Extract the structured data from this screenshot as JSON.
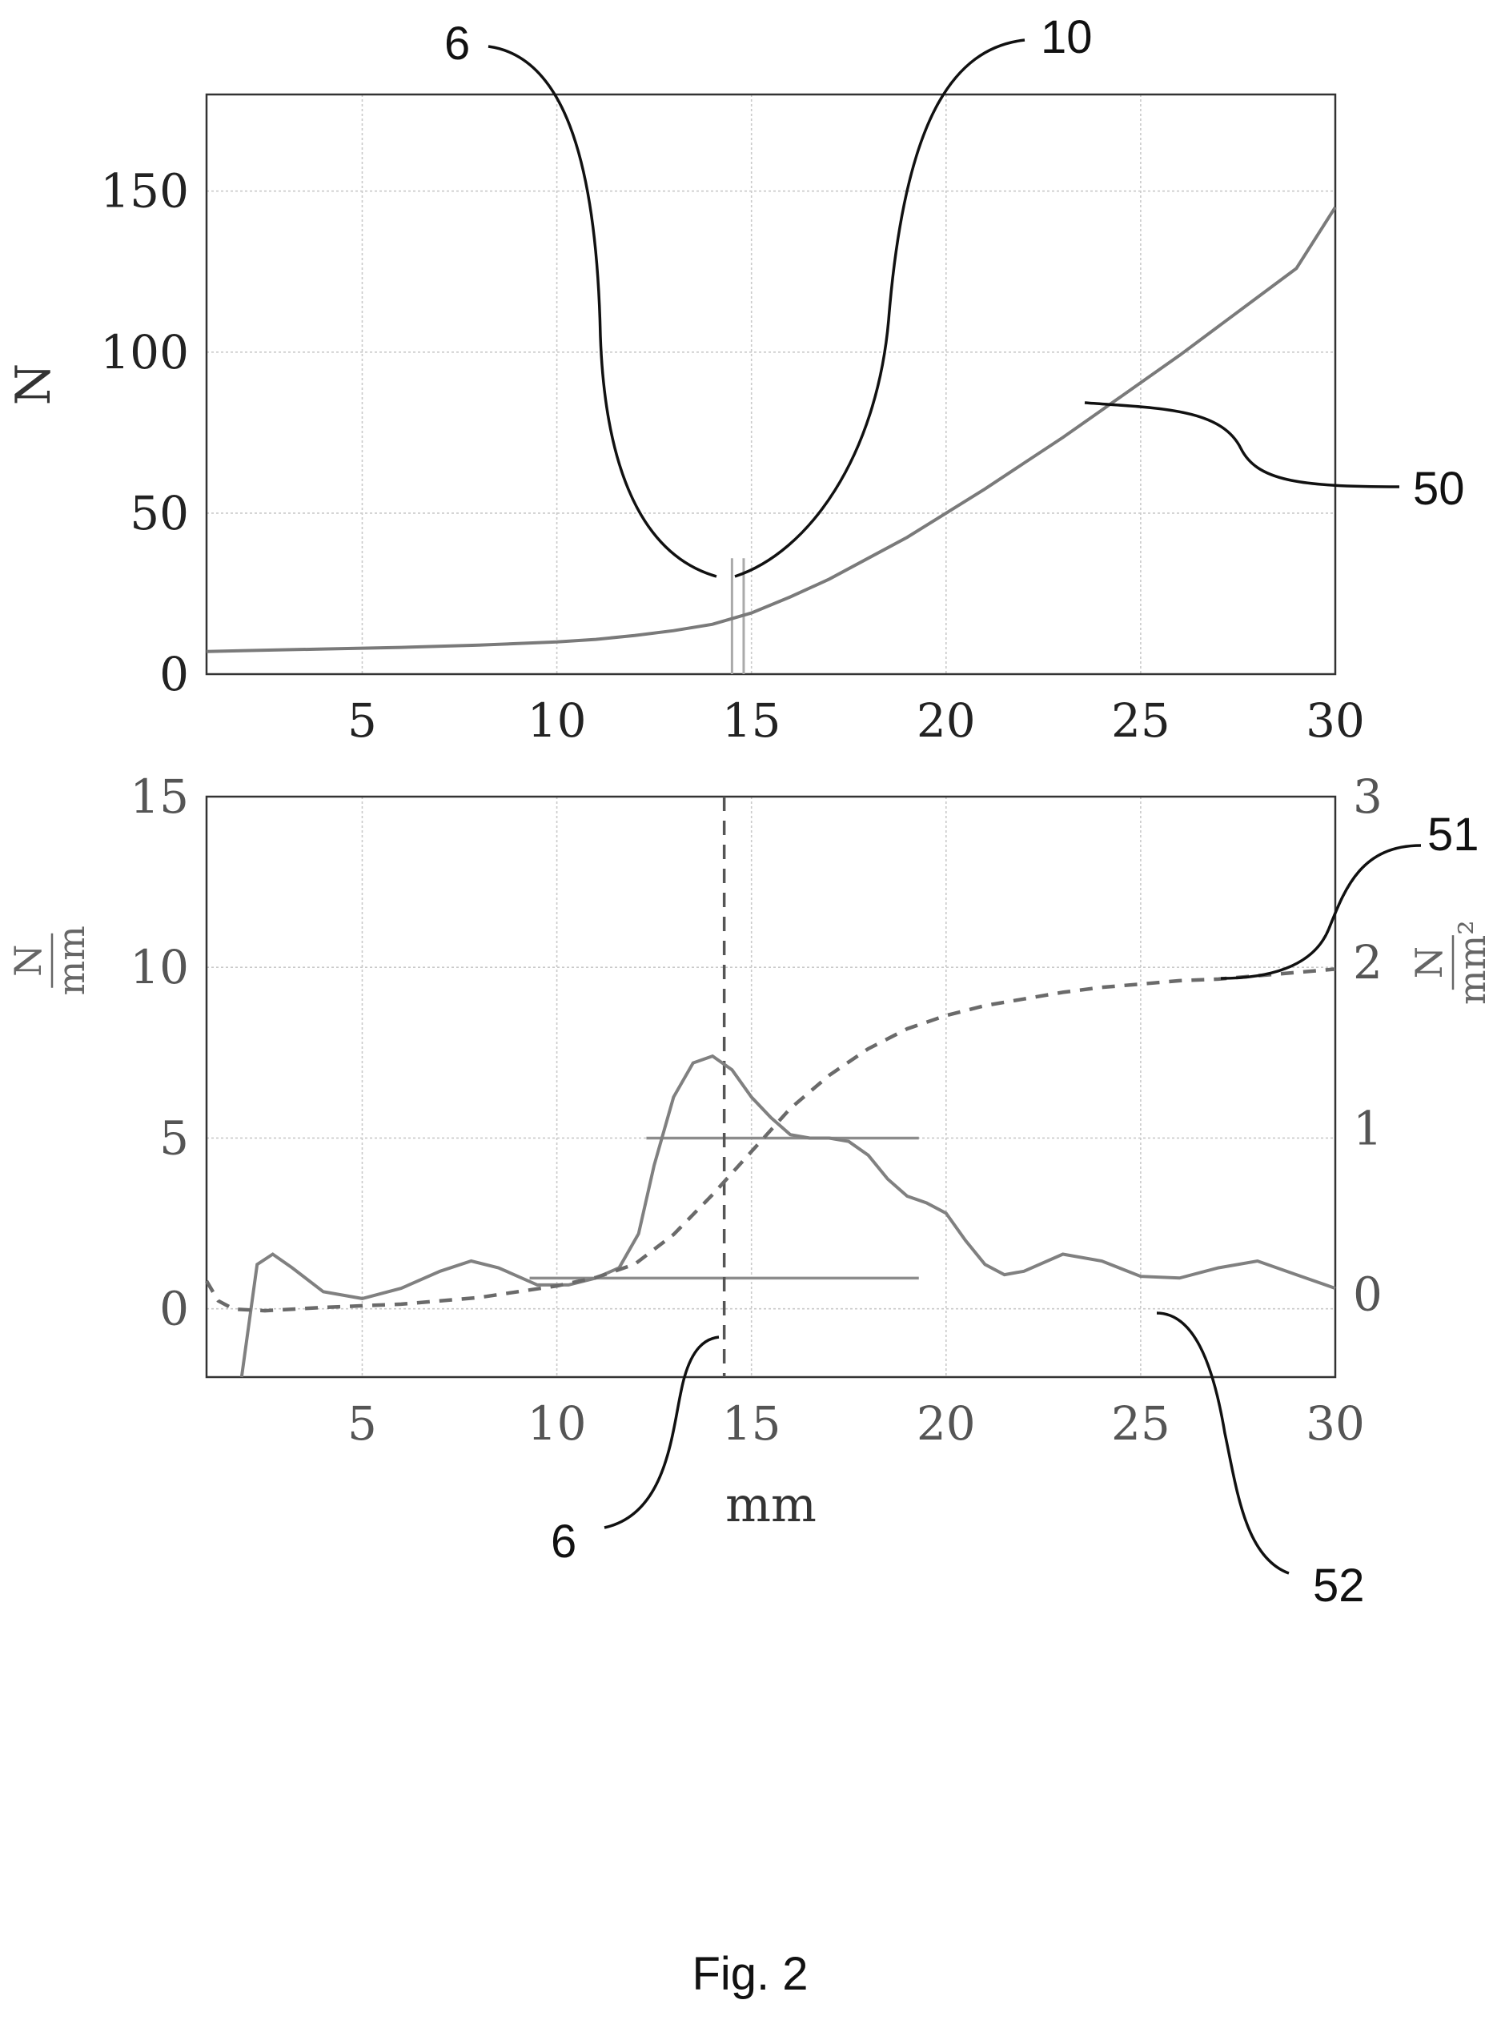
{
  "chart_data": [
    {
      "type": "line",
      "title": "",
      "xlabel": "",
      "ylabel": "N",
      "xlim": [
        1,
        30
      ],
      "ylim": [
        0,
        180
      ],
      "xticks": [
        "5",
        "10",
        "15",
        "20",
        "25",
        "30"
      ],
      "yticks": [
        "0",
        "50",
        "100",
        "150"
      ],
      "grid": true,
      "series": [
        {
          "x": [
            1,
            2,
            4,
            6,
            8,
            10,
            11,
            12,
            13,
            14,
            15,
            16,
            17,
            18,
            19,
            20,
            21,
            22,
            23,
            24,
            25,
            26,
            27,
            28,
            29,
            30
          ],
          "values": [
            7,
            7.3,
            7.8,
            8.3,
            9,
            10,
            10.8,
            12,
            13.5,
            15.5,
            19,
            24,
            29.5,
            36,
            42.5,
            50,
            57.5,
            65.5,
            73.5,
            82,
            90.5,
            99,
            108,
            117,
            126,
            145
          ]
        }
      ],
      "markers": [
        {
          "x": 14.5,
          "style": "vertical-line"
        },
        {
          "x": 14.8,
          "style": "vertical-line"
        }
      ],
      "annotations": [
        {
          "text": "6"
        },
        {
          "text": "10"
        },
        {
          "text": "50"
        }
      ]
    },
    {
      "type": "line",
      "title": "",
      "xlabel": "mm",
      "ylabel": "N/mm",
      "ylabel_num": "N",
      "ylabel_den": "mm",
      "y2label_num": "N",
      "y2label_den": "mm²",
      "xlim": [
        1,
        30
      ],
      "ylim": [
        -2,
        15
      ],
      "y2lim": [
        -0.5,
        3
      ],
      "xticks": [
        "5",
        "10",
        "15",
        "20",
        "25",
        "30"
      ],
      "yticks": [
        "0",
        "5",
        "10",
        "15"
      ],
      "y2ticks": [
        "0",
        "1",
        "2",
        "3"
      ],
      "grid": true,
      "series": [
        {
          "axis": "left",
          "style": "solid",
          "x": [
            1.9,
            2.3,
            2.7,
            3.2,
            4,
            5,
            6,
            7,
            7.8,
            8.5,
            9.5,
            10.3,
            11,
            11.6,
            12.1,
            12.5,
            13,
            13.5,
            14,
            14.5,
            15,
            15.5,
            16,
            16.5,
            17,
            17.5,
            18,
            18.5,
            19,
            19.5,
            20,
            20.5,
            21,
            21.5,
            22,
            23,
            24,
            25,
            26,
            27,
            28,
            29,
            30
          ],
          "values": [
            -2,
            1.3,
            1.6,
            1.2,
            0.5,
            0.3,
            0.6,
            1.1,
            1.4,
            1.2,
            0.7,
            0.7,
            0.9,
            1.2,
            2.2,
            4.2,
            6.2,
            7.2,
            7.4,
            7.0,
            6.2,
            5.6,
            5.1,
            5.0,
            5.0,
            4.9,
            4.5,
            3.8,
            3.3,
            3.1,
            2.8,
            2.0,
            1.3,
            1.0,
            1.1,
            1.6,
            1.4,
            0.95,
            0.9,
            1.2,
            1.4,
            1.0,
            0.6
          ]
        },
        {
          "axis": "right",
          "style": "dashed",
          "x": [
            1,
            1.3,
            1.7,
            2.5,
            4,
            6,
            8,
            10,
            11,
            12,
            13,
            14,
            15,
            16,
            17,
            18,
            19,
            20,
            21,
            22,
            23,
            24,
            25,
            26,
            27,
            28,
            29,
            30
          ],
          "values": [
            0.08,
            -0.04,
            -0.09,
            -0.1,
            -0.08,
            -0.06,
            -0.02,
            0.05,
            0.1,
            0.18,
            0.36,
            0.6,
            0.86,
            1.12,
            1.32,
            1.48,
            1.6,
            1.68,
            1.74,
            1.78,
            1.82,
            1.85,
            1.87,
            1.89,
            1.9,
            1.92,
            1.94,
            1.96
          ]
        }
      ],
      "hlines": [
        {
          "y": 5,
          "x_from": 12.3,
          "x_to": 19.3
        },
        {
          "y": 0.9,
          "x_from": 9.3,
          "x_to": 19.3
        }
      ],
      "markers": [
        {
          "x": 14.3,
          "style": "dashed-vertical"
        }
      ],
      "annotations": [
        {
          "text": "51"
        },
        {
          "text": "6"
        },
        {
          "text": "52"
        }
      ]
    }
  ],
  "caption": "Fig. 2"
}
